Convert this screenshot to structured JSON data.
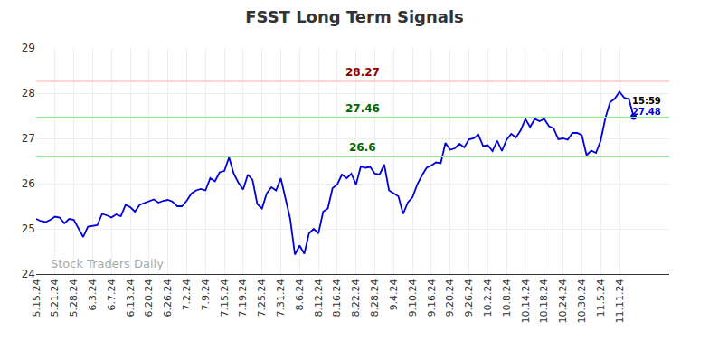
{
  "chart_data": {
    "type": "line",
    "title": "FSST Long Term Signals",
    "categories": [
      "5.15.24",
      null,
      null,
      null,
      "5.21.24",
      null,
      null,
      null,
      "5.28.24",
      null,
      null,
      null,
      "6.3.24",
      null,
      null,
      null,
      "6.7.24",
      null,
      null,
      null,
      "6.13.24",
      null,
      null,
      null,
      "6.20.24",
      null,
      null,
      null,
      "6.26.24",
      null,
      null,
      null,
      "7.2.24",
      null,
      null,
      null,
      "7.9.24",
      null,
      null,
      null,
      "7.15.24",
      null,
      null,
      null,
      "7.19.24",
      null,
      null,
      null,
      "7.25.24",
      null,
      null,
      null,
      "7.31.24",
      null,
      null,
      null,
      "8.6.24",
      null,
      null,
      null,
      "8.12.24",
      null,
      null,
      null,
      "8.16.24",
      null,
      null,
      null,
      "8.22.24",
      null,
      null,
      null,
      "8.28.24",
      null,
      null,
      null,
      "9.4.24",
      null,
      null,
      null,
      "9.10.24",
      null,
      null,
      null,
      "9.16.24",
      null,
      null,
      null,
      "9.20.24",
      null,
      null,
      null,
      "9.26.24",
      null,
      null,
      null,
      "10.2.24",
      null,
      null,
      null,
      "10.8.24",
      null,
      null,
      null,
      "10.14.24",
      null,
      null,
      null,
      "10.18.24",
      null,
      null,
      null,
      "10.24.24",
      null,
      null,
      null,
      "10.30.24",
      null,
      null,
      null,
      "11.5.24",
      null,
      null,
      null,
      "11.11.24",
      null,
      null,
      null
    ],
    "values": [
      25.22,
      25.17,
      25.15,
      25.2,
      25.27,
      25.25,
      25.12,
      25.22,
      25.2,
      25.0,
      24.82,
      25.05,
      25.07,
      25.08,
      25.33,
      25.3,
      25.25,
      25.32,
      25.28,
      25.53,
      25.48,
      25.38,
      25.53,
      25.57,
      25.6,
      25.65,
      25.58,
      25.62,
      25.64,
      25.6,
      25.5,
      25.5,
      25.62,
      25.78,
      25.85,
      25.88,
      25.85,
      26.12,
      26.05,
      26.25,
      26.28,
      26.58,
      26.22,
      26.02,
      25.87,
      26.2,
      26.08,
      25.55,
      25.45,
      25.78,
      25.92,
      25.85,
      26.12,
      25.7,
      25.22,
      24.43,
      24.63,
      24.45,
      24.9,
      25.0,
      24.9,
      25.38,
      25.45,
      25.9,
      25.98,
      26.2,
      26.12,
      26.22,
      25.98,
      26.38,
      26.35,
      26.37,
      26.22,
      26.2,
      26.42,
      25.85,
      25.78,
      25.72,
      25.33,
      25.58,
      25.7,
      25.98,
      26.18,
      26.35,
      26.4,
      26.47,
      26.45,
      26.9,
      26.75,
      26.78,
      26.88,
      26.8,
      26.98,
      27.0,
      27.08,
      26.83,
      26.85,
      26.72,
      26.95,
      26.72,
      26.97,
      27.1,
      27.02,
      27.18,
      27.43,
      27.25,
      27.43,
      27.38,
      27.43,
      27.27,
      27.22,
      26.98,
      27.0,
      26.97,
      27.12,
      27.12,
      27.07,
      26.63,
      26.73,
      26.68,
      26.95,
      27.45,
      27.8,
      27.88,
      28.03,
      27.9,
      27.87,
      27.48
    ],
    "color": "#0000dd",
    "ylim": [
      24,
      29
    ],
    "yticks": [
      24,
      25,
      26,
      27,
      28,
      29
    ],
    "grid": true,
    "levels": [
      {
        "value": 28.27,
        "color": "#8b0000",
        "line_color": "#ffb3b3"
      },
      {
        "value": 27.46,
        "color": "#006400",
        "line_color": "#90ee90"
      },
      {
        "value": 26.6,
        "color": "#006400",
        "line_color": "#90ee90"
      }
    ],
    "last_label": "15:59",
    "watermark": "Stock Traders Daily"
  }
}
